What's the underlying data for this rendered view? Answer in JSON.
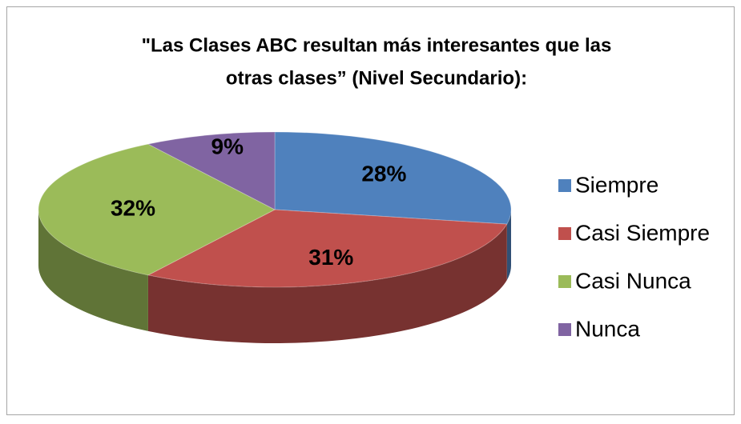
{
  "chart_data": {
    "type": "pie3d",
    "title": [
      "\"Las Clases ABC resultan más interesantes que las",
      "otras clases” (Nivel Secundario):"
    ],
    "categories": [
      "Siempre",
      "Casi Siempre",
      "Casi Nunca",
      "Nunca"
    ],
    "values": [
      28,
      31,
      32,
      9
    ],
    "value_labels": [
      "28%",
      "31%",
      "32%",
      "9%"
    ],
    "colors": [
      "#4f81bd",
      "#c0504d",
      "#9bbb59",
      "#8064a2"
    ],
    "legend": "right"
  }
}
